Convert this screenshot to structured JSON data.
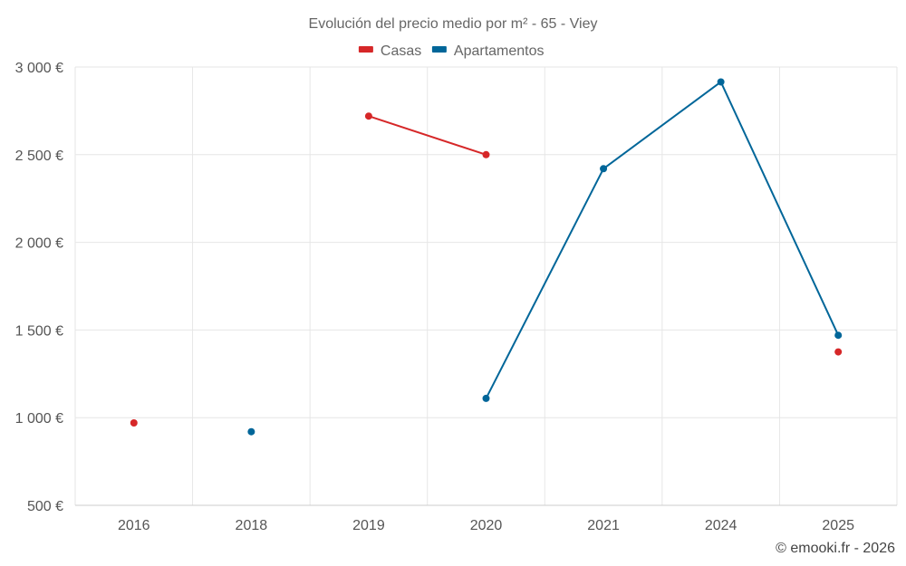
{
  "chart_data": {
    "type": "line",
    "title": "Evolución del precio medio por m² - 65 - Viey",
    "categories": [
      "2016",
      "2018",
      "2019",
      "2020",
      "2021",
      "2024",
      "2025"
    ],
    "y_ticks": [
      "500 €",
      "1 000 €",
      "1 500 €",
      "2 000 €",
      "2 500 €",
      "3 000 €"
    ],
    "ylim": [
      500,
      3000
    ],
    "grid": true,
    "legend_position": "top-center",
    "series": [
      {
        "name": "Casas",
        "color": "#d62728",
        "values": [
          970,
          null,
          2720,
          2500,
          null,
          null,
          1375
        ]
      },
      {
        "name": "Apartamentos",
        "color": "#006699",
        "values": [
          null,
          920,
          null,
          1110,
          2420,
          2915,
          1470
        ]
      }
    ]
  },
  "credit": "© emooki.fr - 2026"
}
